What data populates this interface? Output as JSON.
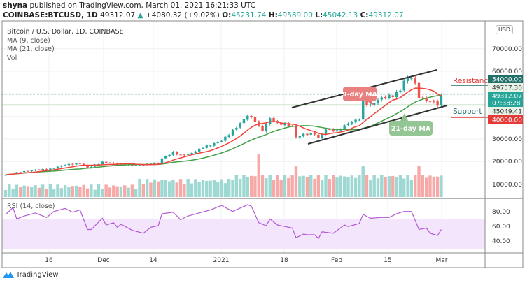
{
  "header": {
    "publisher": "shyna",
    "published_text": "published on TradingView.com, March 01, 2021 16:21:33 UTC",
    "symbol": "COINBASE:BTCUSD, 1D",
    "last": "49312.07",
    "change": "+4080.32 (+9.02%)",
    "o_label": "O:",
    "o": "45231.74",
    "h_label": "H:",
    "h": "49589.00",
    "l_label": "L:",
    "l": "45042.13",
    "c_label": "C:",
    "c": "49312.07"
  },
  "legend": {
    "title": "Bitcoin / U.S. Dollar, 1D, COINBASE",
    "ma9": "MA (9, close)",
    "ma21": "MA (21, close)",
    "vol": "Vol"
  },
  "currency_button": "USD",
  "annotations": {
    "ma9_label": "9-day MA",
    "ma21_label": "21-day MA",
    "resistance": "Resistance",
    "support": "Support"
  },
  "price_axis": {
    "ticks": [
      "70000.00",
      "60000.00",
      "30000.00",
      "20000.00",
      "10000.00"
    ],
    "tags": {
      "resistance_level": "54000.00",
      "ma9_value": "49757.30",
      "last_price": "49312.07",
      "countdown": "07:38:28",
      "ma21_value": "45049.41",
      "support_level": "40000.00"
    }
  },
  "rsi": {
    "label": "RSI (14, close)",
    "ticks": [
      "80.00",
      "60.00",
      "40.00"
    ]
  },
  "date_axis": [
    "16",
    "Dec",
    "14",
    "2021",
    "18",
    "Feb",
    "15",
    "Mar"
  ],
  "branding": "TradingView",
  "colors": {
    "up": "#26a69a",
    "down": "#ef5350",
    "ma9": "#f0433a",
    "ma21": "#43a047",
    "rsi": "#b357d4",
    "rsi_band": "#f3e5fc",
    "tag_dark": "#22706a",
    "tag_teal": "#26a69a",
    "tag_red": "#e53935"
  },
  "chart_data": {
    "type": "candlestick",
    "symbol": "BTCUSD",
    "interval": "1D",
    "ylim": [
      0,
      80000
    ],
    "close_keypoints": [
      [
        "2020-11-04",
        14100
      ],
      [
        "2020-11-08",
        15400
      ],
      [
        "2020-11-12",
        16300
      ],
      [
        "2020-11-16",
        16700
      ],
      [
        "2020-11-20",
        18600
      ],
      [
        "2020-11-24",
        19100
      ],
      [
        "2020-11-26",
        17100
      ],
      [
        "2020-11-30",
        19700
      ],
      [
        "2020-12-04",
        18900
      ],
      [
        "2020-12-08",
        18300
      ],
      [
        "2020-12-12",
        18800
      ],
      [
        "2020-12-15",
        19300
      ],
      [
        "2020-12-16",
        21300
      ],
      [
        "2020-12-19",
        24000
      ],
      [
        "2020-12-21",
        22700
      ],
      [
        "2020-12-24",
        23700
      ],
      [
        "2020-12-27",
        26300
      ],
      [
        "2020-12-29",
        27300
      ],
      [
        "2021-01-01",
        29300
      ],
      [
        "2021-01-03",
        32100
      ],
      [
        "2021-01-06",
        36800
      ],
      [
        "2021-01-08",
        40500
      ],
      [
        "2021-01-10",
        38100
      ],
      [
        "2021-01-11",
        35500
      ],
      [
        "2021-01-12",
        33900
      ],
      [
        "2021-01-14",
        39200
      ],
      [
        "2021-01-16",
        36800
      ],
      [
        "2021-01-18",
        36600
      ],
      [
        "2021-01-20",
        35500
      ],
      [
        "2021-01-21",
        30800
      ],
      [
        "2021-01-23",
        32000
      ],
      [
        "2021-01-26",
        32300
      ],
      [
        "2021-01-27",
        30400
      ],
      [
        "2021-01-29",
        34300
      ],
      [
        "2021-02-01",
        33500
      ],
      [
        "2021-02-04",
        36900
      ],
      [
        "2021-02-07",
        38900
      ],
      [
        "2021-02-08",
        46400
      ],
      [
        "2021-02-10",
        44800
      ],
      [
        "2021-02-12",
        47400
      ],
      [
        "2021-02-14",
        48700
      ],
      [
        "2021-02-16",
        49100
      ],
      [
        "2021-02-18",
        51600
      ],
      [
        "2021-02-19",
        55900
      ],
      [
        "2021-02-21",
        57400
      ],
      [
        "2021-02-22",
        54000
      ],
      [
        "2021-02-23",
        48800
      ],
      [
        "2021-02-25",
        47000
      ],
      [
        "2021-02-27",
        46200
      ],
      [
        "2021-02-28",
        45200
      ],
      [
        "2021-03-01",
        49312.07
      ]
    ],
    "resistance": 54000,
    "support": 40000,
    "rsi_keypoints": [
      [
        "2020-11-04",
        76
      ],
      [
        "2020-11-06",
        85
      ],
      [
        "2020-11-07",
        70
      ],
      [
        "2020-11-09",
        74
      ],
      [
        "2020-11-12",
        78
      ],
      [
        "2020-11-15",
        72
      ],
      [
        "2020-11-17",
        80
      ],
      [
        "2020-11-20",
        84
      ],
      [
        "2020-11-22",
        79
      ],
      [
        "2020-11-24",
        82
      ],
      [
        "2020-11-26",
        56
      ],
      [
        "2020-11-27",
        56
      ],
      [
        "2020-11-30",
        71
      ],
      [
        "2020-12-01",
        62
      ],
      [
        "2020-12-03",
        65
      ],
      [
        "2020-12-04",
        59
      ],
      [
        "2020-12-05",
        63
      ],
      [
        "2020-12-08",
        55
      ],
      [
        "2020-12-11",
        51
      ],
      [
        "2020-12-13",
        59
      ],
      [
        "2020-12-15",
        61
      ],
      [
        "2020-12-16",
        77
      ],
      [
        "2020-12-19",
        79
      ],
      [
        "2020-12-21",
        69
      ],
      [
        "2020-12-23",
        74
      ],
      [
        "2020-12-26",
        78
      ],
      [
        "2020-12-29",
        82
      ],
      [
        "2021-01-01",
        88
      ],
      [
        "2021-01-04",
        80
      ],
      [
        "2021-01-08",
        89
      ],
      [
        "2021-01-09",
        87
      ],
      [
        "2021-01-11",
        65
      ],
      [
        "2021-01-13",
        61
      ],
      [
        "2021-01-14",
        70
      ],
      [
        "2021-01-16",
        62
      ],
      [
        "2021-01-18",
        60
      ],
      [
        "2021-01-20",
        58
      ],
      [
        "2021-01-21",
        45
      ],
      [
        "2021-01-23",
        50
      ],
      [
        "2021-01-24",
        49
      ],
      [
        "2021-01-26",
        49
      ],
      [
        "2021-01-27",
        44
      ],
      [
        "2021-01-28",
        53
      ],
      [
        "2021-01-31",
        51
      ],
      [
        "2021-02-03",
        62
      ],
      [
        "2021-02-04",
        60
      ],
      [
        "2021-02-07",
        64
      ],
      [
        "2021-02-08",
        76
      ],
      [
        "2021-02-10",
        71
      ],
      [
        "2021-02-13",
        72
      ],
      [
        "2021-02-15",
        72
      ],
      [
        "2021-02-17",
        77
      ],
      [
        "2021-02-19",
        80
      ],
      [
        "2021-02-21",
        80
      ],
      [
        "2021-02-23",
        56
      ],
      [
        "2021-02-25",
        58
      ],
      [
        "2021-02-26",
        51
      ],
      [
        "2021-02-28",
        48
      ],
      [
        "2021-03-01",
        56
      ]
    ],
    "rsi_bands": [
      70,
      30
    ],
    "volume_spikes": [
      "2021-01-11",
      "2021-02-08",
      "2021-02-23",
      "2021-01-21"
    ]
  }
}
